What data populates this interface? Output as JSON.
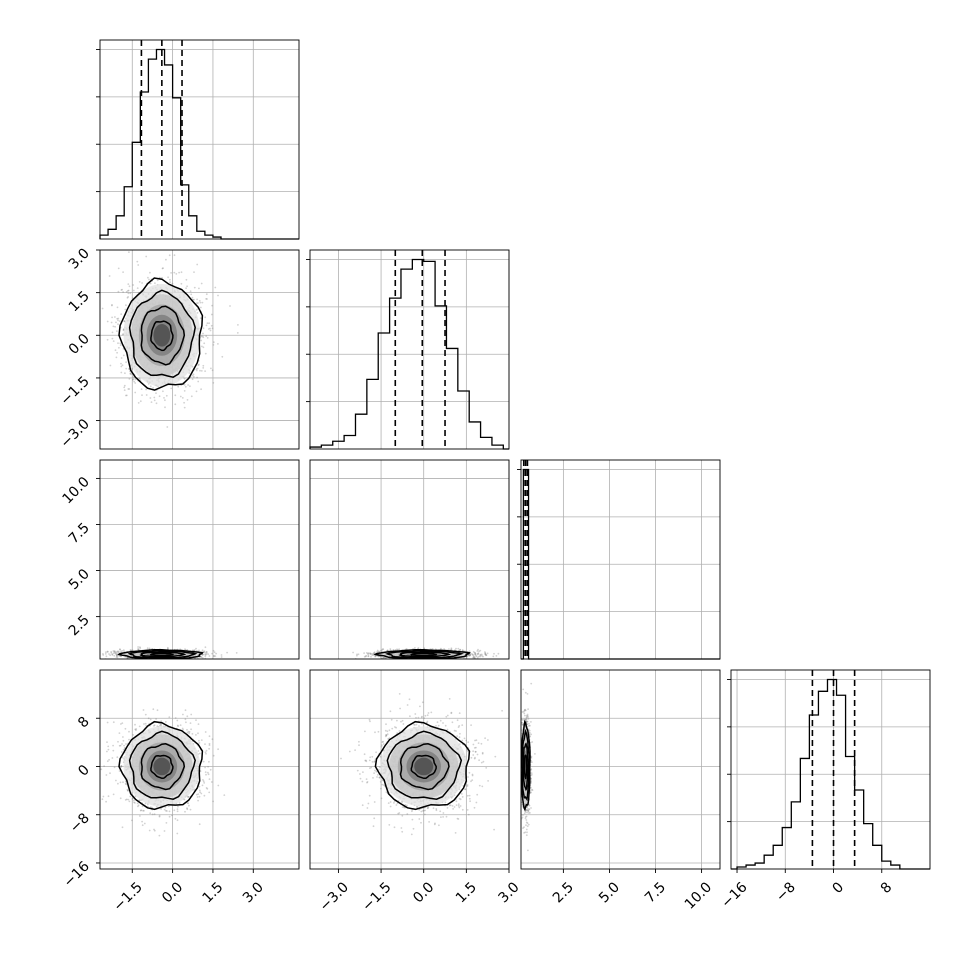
{
  "chart_data": {
    "type": "corner",
    "grid": true,
    "colors": {
      "frame": "#000000",
      "grid": "#b0b0b0",
      "points": "#7f7f7f",
      "contour": "#000000"
    },
    "parameters": [
      {
        "index": 0,
        "range": [
          -2.7,
          4.7
        ],
        "ticks": [
          -1.5,
          0.0,
          1.5,
          3.0
        ],
        "tick_labels": [
          "−1.5",
          "0.0",
          "1.5",
          "3.0"
        ],
        "quantiles": [
          -1.16,
          -0.4,
          0.35
        ],
        "mean": -0.4,
        "sd": 0.75
      },
      {
        "index": 1,
        "range": [
          -4.0,
          3.0
        ],
        "ticks": [
          -3.0,
          -1.5,
          0.0,
          1.5,
          3.0
        ],
        "tick_labels": [
          "−3.0",
          "−1.5",
          "0.0",
          "1.5",
          "3.0"
        ],
        "quantiles": [
          -1.0,
          -0.05,
          0.75
        ],
        "mean": 0.0,
        "sd": 0.8
      },
      {
        "index": 2,
        "range": [
          0.2,
          11.0
        ],
        "ticks": [
          2.5,
          5.0,
          7.5,
          10.0
        ],
        "tick_labels": [
          "2.5",
          "5.0",
          "7.5",
          "10.0"
        ],
        "quantiles": [
          0.35,
          0.45,
          0.55
        ],
        "mean": 0.45,
        "sd": 0.12
      },
      {
        "index": 3,
        "range": [
          -17.0,
          16.0
        ],
        "ticks": [
          -16,
          -8,
          0,
          8
        ],
        "tick_labels": [
          "−16",
          "−8",
          "0",
          "8"
        ],
        "quantiles": [
          -3.5,
          0.0,
          3.5
        ],
        "mean": 0.0,
        "sd": 3.5
      }
    ],
    "histograms": [
      {
        "param": 0,
        "bin_edges": [
          -2.7,
          -2.4,
          -2.1,
          -1.8,
          -1.5,
          -1.2,
          -0.9,
          -0.6,
          -0.3,
          0.0,
          0.3,
          0.6,
          0.9,
          1.2,
          1.5,
          1.8
        ],
        "counts": [
          2,
          5,
          12,
          27,
          50,
          76,
          93,
          98,
          90,
          73,
          28,
          12,
          4,
          2,
          1
        ]
      },
      {
        "param": 1,
        "bin_edges": [
          -4.0,
          -3.6,
          -3.2,
          -2.8,
          -2.4,
          -2.0,
          -1.6,
          -1.2,
          -0.8,
          -0.4,
          0.0,
          0.4,
          0.8,
          1.2,
          1.6,
          2.0,
          2.4,
          2.8
        ],
        "counts": [
          1,
          2,
          4,
          7,
          18,
          36,
          60,
          78,
          93,
          98,
          97,
          74,
          52,
          30,
          14,
          6,
          2
        ]
      },
      {
        "param": 2,
        "bin_edges": [
          0.33,
          0.4,
          0.47,
          0.54,
          0.61
        ],
        "counts": [
          98,
          98,
          98,
          98
        ]
      },
      {
        "param": 3,
        "bin_edges": [
          -16,
          -14.5,
          -13,
          -11.5,
          -10,
          -8.5,
          -7,
          -5.5,
          -4,
          -2.5,
          -1,
          0.5,
          2,
          3.5,
          5,
          6.5,
          8,
          9.5,
          11
        ],
        "counts": [
          1,
          2,
          3,
          7,
          12,
          21,
          34,
          56,
          78,
          90,
          96,
          88,
          57,
          40,
          23,
          12,
          4,
          2
        ]
      }
    ],
    "pairs": [
      {
        "x_param": 0,
        "y_param": 1,
        "n_points": 1800,
        "y_sd": 0.95
      },
      {
        "x_param": 0,
        "y_param": 2,
        "n_points": 1800
      },
      {
        "x_param": 1,
        "y_param": 2,
        "n_points": 1800
      },
      {
        "x_param": 0,
        "y_param": 3,
        "n_points": 1800
      },
      {
        "x_param": 1,
        "y_param": 3,
        "n_points": 1800
      },
      {
        "x_param": 2,
        "y_param": 3,
        "n_points": 1800
      }
    ]
  }
}
